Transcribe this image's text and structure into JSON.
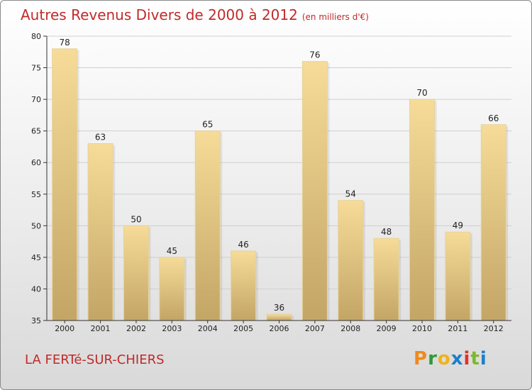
{
  "title": "Autres Revenus Divers de 2000 à 2012",
  "unit": "(en milliers d'€)",
  "commune": "LA FERTé-SUR-CHIERS",
  "brand": {
    "letters": [
      "P",
      "r",
      "o",
      "x",
      "i",
      "t",
      "i"
    ],
    "colors": [
      "#f08a1c",
      "#2e9a3a",
      "#f2b11a",
      "#1e7fc8",
      "#e2302b",
      "#7ab92e",
      "#1e7fc8"
    ]
  },
  "colors": {
    "title": "#c12a2a",
    "bar_light": "#f5dc9a",
    "bar_dark": "#c6a96a"
  },
  "chart_data": {
    "type": "bar",
    "title": "Autres Revenus Divers de 2000 à 2012",
    "categories": [
      "2000",
      "2001",
      "2002",
      "2003",
      "2004",
      "2005",
      "2006",
      "2007",
      "2008",
      "2009",
      "2010",
      "2011",
      "2012"
    ],
    "values": [
      78,
      63,
      50,
      45,
      65,
      46,
      36,
      76,
      54,
      48,
      70,
      49,
      66
    ],
    "ylim": [
      35,
      80
    ],
    "yticks": [
      35,
      40,
      45,
      50,
      55,
      60,
      65,
      70,
      75,
      80
    ],
    "grid": true
  }
}
